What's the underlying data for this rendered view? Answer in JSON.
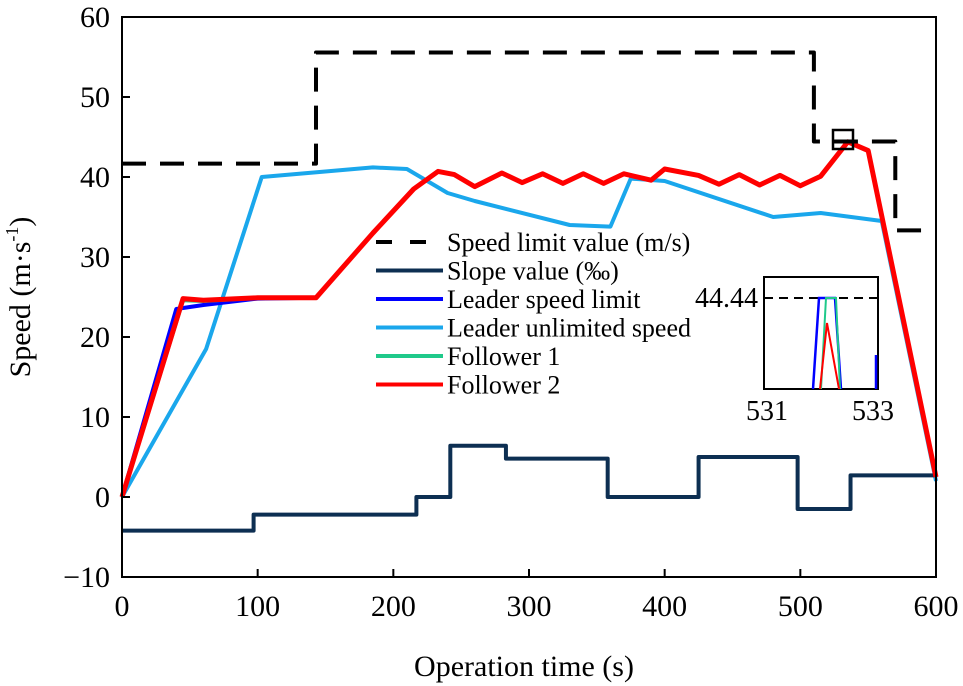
{
  "chart_data": {
    "type": "line",
    "xlabel": "Operation time (s)",
    "ylabel": "Speed (m·s",
    "ylabel_sup": "-1",
    "ylabel_close": ")",
    "xlim": [
      0,
      600
    ],
    "ylim": [
      -10,
      60
    ],
    "xticks": [
      0,
      100,
      200,
      300,
      400,
      500,
      600
    ],
    "xtick_labels": [
      "0",
      "100",
      "200",
      "300",
      "400",
      "500",
      "600"
    ],
    "yticks": [
      -10,
      0,
      10,
      20,
      30,
      40,
      50,
      60
    ],
    "ytick_labels": [
      "−10",
      "0",
      "10",
      "20",
      "30",
      "40",
      "50",
      "60"
    ],
    "legend_placement": "center",
    "series": [
      {
        "name": "Speed limit value (m/s)",
        "color": "#000000",
        "dash": true,
        "x": [
          0,
          143,
          143,
          510,
          510,
          570,
          570,
          600
        ],
        "y": [
          41.67,
          41.67,
          55.56,
          55.56,
          44.44,
          44.44,
          33.33,
          33.33
        ]
      },
      {
        "name": "Slope value (‰)",
        "color": "#0d2f52",
        "x": [
          0,
          97,
          97,
          217,
          217,
          242,
          242,
          283,
          283,
          358,
          358,
          425,
          425,
          498,
          498,
          537,
          537,
          600
        ],
        "y": [
          -4.2,
          -4.2,
          -2.2,
          -2.2,
          0,
          0,
          6.4,
          6.4,
          4.8,
          4.8,
          0,
          0,
          5,
          5,
          -1.5,
          -1.5,
          2.7,
          2.7
        ]
      },
      {
        "name": "Leader speed limit",
        "color": "#0000ff",
        "x": [
          0,
          40,
          60,
          100,
          143,
          185,
          215,
          233,
          245,
          260,
          280,
          295,
          310,
          325,
          340,
          355,
          370,
          390,
          400,
          425,
          440,
          455,
          470,
          485,
          500,
          515,
          535,
          550,
          600
        ],
        "y": [
          0,
          23.5,
          24,
          24.8,
          24.9,
          33,
          38.5,
          40.7,
          40.3,
          38.8,
          40.5,
          39.3,
          40.4,
          39.2,
          40.4,
          39.2,
          40.4,
          39.6,
          41,
          40.2,
          39.1,
          40.3,
          39,
          40.2,
          38.9,
          40.1,
          44.4,
          43.3,
          2.5
        ]
      },
      {
        "name": "Leader unlimited speed",
        "color": "#1aa7ec",
        "x": [
          0,
          62,
          103,
          185,
          210,
          240,
          260,
          330,
          360,
          375,
          400,
          480,
          515,
          560,
          600
        ],
        "y": [
          0,
          18.5,
          40,
          41.2,
          41,
          38,
          37,
          34,
          33.8,
          39.8,
          39.5,
          35,
          35.5,
          34.5,
          2
        ]
      },
      {
        "name": "Follower 1",
        "color": "#1fc98a",
        "x": [
          0,
          45,
          60,
          100,
          143,
          185,
          215,
          233,
          245,
          260,
          280,
          295,
          310,
          325,
          340,
          355,
          370,
          390,
          400,
          425,
          440,
          455,
          470,
          485,
          500,
          515,
          535,
          550,
          600
        ],
        "y": [
          0,
          24.6,
          24.5,
          24.9,
          24.9,
          33,
          38.5,
          40.7,
          40.3,
          38.8,
          40.5,
          39.3,
          40.4,
          39.2,
          40.4,
          39.2,
          40.4,
          39.6,
          41,
          40.2,
          39.1,
          40.3,
          39,
          40.2,
          38.9,
          40.1,
          44.4,
          43.3,
          2.5
        ]
      },
      {
        "name": "Follower 2",
        "color": "#ff0000",
        "x": [
          0,
          45,
          60,
          100,
          143,
          185,
          215,
          233,
          245,
          260,
          280,
          295,
          310,
          325,
          340,
          355,
          370,
          390,
          400,
          425,
          440,
          455,
          470,
          485,
          500,
          515,
          535,
          550,
          600
        ],
        "y": [
          0,
          24.8,
          24.6,
          24.9,
          24.9,
          33,
          38.5,
          40.7,
          40.3,
          38.8,
          40.5,
          39.3,
          40.4,
          39.2,
          40.4,
          39.2,
          40.4,
          39.6,
          41,
          40.2,
          39.1,
          40.3,
          39,
          40.2,
          38.9,
          40.1,
          44.4,
          43.3,
          2.5
        ]
      }
    ],
    "inset": {
      "xlim": [
        531,
        533
      ],
      "xtick_labels": [
        "531",
        "533"
      ],
      "ytick_label": "44.44",
      "ref_value": 44.44,
      "marker_at": [
        533,
        44.2
      ]
    }
  }
}
